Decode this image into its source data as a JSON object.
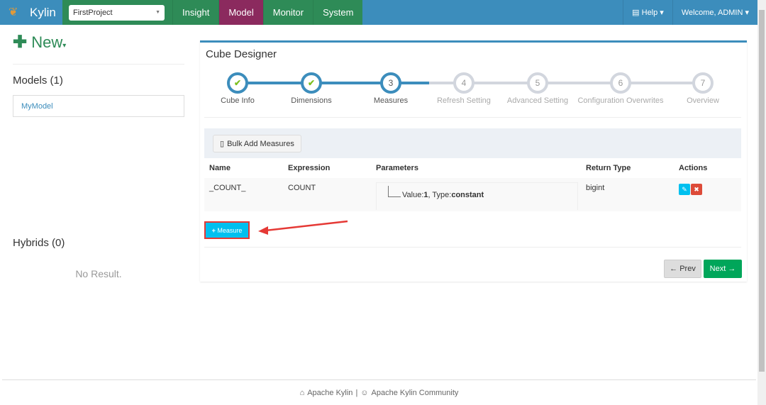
{
  "navbar": {
    "brand": "Kylin",
    "project": "FirstProject",
    "links": [
      "Insight",
      "Model",
      "Monitor",
      "System"
    ],
    "active": "Model",
    "help": "Help",
    "welcome": "Welcome, ADMIN"
  },
  "sidebar": {
    "new_label": "New",
    "models_heading": "Models (1)",
    "models": [
      "MyModel"
    ],
    "hybrids_heading": "Hybrids (0)",
    "no_result": "No Result."
  },
  "designer": {
    "title": "Cube Designer",
    "steps": [
      {
        "num": "1",
        "label": "Cube Info",
        "state": "done"
      },
      {
        "num": "2",
        "label": "Dimensions",
        "state": "done"
      },
      {
        "num": "3",
        "label": "Measures",
        "state": "current"
      },
      {
        "num": "4",
        "label": "Refresh Setting",
        "state": "pending"
      },
      {
        "num": "5",
        "label": "Advanced Setting",
        "state": "pending"
      },
      {
        "num": "6",
        "label": "Configuration Overwrites",
        "state": "pending"
      },
      {
        "num": "7",
        "label": "Overview",
        "state": "pending"
      }
    ],
    "bulk_add": "Bulk Add Measures",
    "columns": [
      "Name",
      "Expression",
      "Parameters",
      "Return Type",
      "Actions"
    ],
    "rows": [
      {
        "name": "_COUNT_",
        "expression": "COUNT",
        "param_value_label": "Value:",
        "param_value": "1",
        "param_type_label": ", Type:",
        "param_type": "constant",
        "return_type": "bigint"
      }
    ],
    "add_measure": "Measure",
    "prev": "Prev",
    "next": "Next"
  },
  "footer": {
    "link1": "Apache Kylin",
    "sep": "|",
    "link2": "Apache Kylin Community"
  },
  "colors": {
    "navbar": "#3c8dbc",
    "nav_green": "#2e8b57",
    "nav_active": "#8b2a5e",
    "add_button": "#00c0ef",
    "next": "#00a65a",
    "annotation": "#e53935"
  }
}
